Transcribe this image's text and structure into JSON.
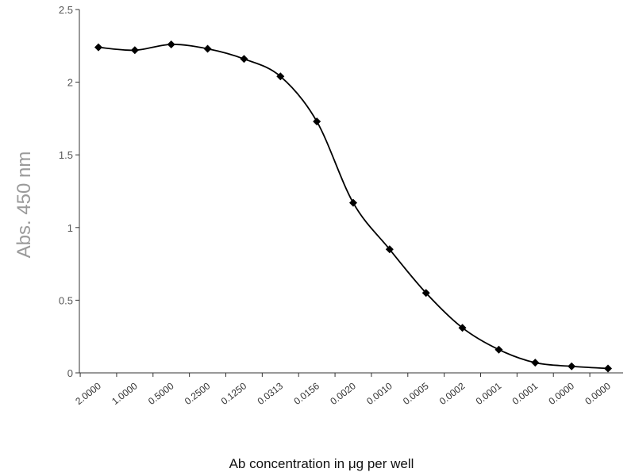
{
  "chart_data": {
    "type": "line",
    "title": "",
    "xlabel": "Ab concentration in μg per well",
    "ylabel": "Abs. 450 nm",
    "categories": [
      "2.0000",
      "1.0000",
      "0.5000",
      "0.2500",
      "0.1250",
      "0.0313",
      "0.0156",
      "0.0020",
      "0.0010",
      "0.0005",
      "0.0002",
      "0.0001",
      "0.0001",
      "0.0000",
      "0.0000"
    ],
    "series": [
      {
        "name": "",
        "values": [
          2.24,
          2.22,
          2.26,
          2.23,
          2.16,
          2.04,
          1.73,
          1.17,
          0.85,
          0.55,
          0.31,
          0.16,
          0.07,
          0.045,
          0.03
        ]
      }
    ],
    "ylim": [
      0,
      2.5
    ],
    "yticks": [
      0,
      0.5,
      1,
      1.5,
      2,
      2.5
    ],
    "ytick_labels": [
      "0",
      "0.5",
      "1",
      "1.5",
      "2",
      "2.5"
    ],
    "grid": false,
    "legend": "none",
    "colors": {
      "line": "#000000",
      "marker": "#000000",
      "axis": "#333333"
    }
  }
}
